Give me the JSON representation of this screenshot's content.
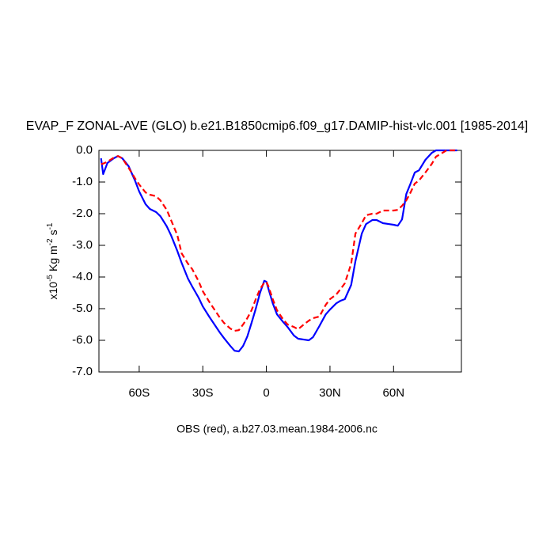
{
  "chart_data": {
    "type": "line",
    "title": "EVAP_F ZONAL-AVE (GLO) b.e21.B1850cmip6.f09_g17.DAMIP-hist-vlc.001 [1985-2014]",
    "xlabel": "OBS (red), a.b27.03.mean.1984-2006.nc",
    "ylabel": {
      "base": [
        "x10",
        "Kg m",
        "s"
      ],
      "sup": [
        "-5",
        "-2",
        "-1"
      ]
    },
    "x": [
      -78,
      -77,
      -75,
      -72,
      -70,
      -68,
      -65,
      -62,
      -60,
      -57,
      -55,
      -52,
      -50,
      -47,
      -45,
      -42,
      -40,
      -37,
      -35,
      -32,
      -30,
      -27,
      -25,
      -22,
      -20,
      -17,
      -15,
      -13,
      -11,
      -9,
      -7,
      -5,
      -3,
      -1,
      0,
      1,
      3,
      5,
      8,
      10,
      13,
      15,
      18,
      20,
      22,
      25,
      28,
      30,
      33,
      35,
      37,
      40,
      42,
      45,
      47,
      50,
      52,
      55,
      58,
      60,
      62,
      64,
      66,
      68,
      70,
      72,
      75,
      78,
      80,
      85,
      90
    ],
    "series": [
      {
        "color": "#0000ff",
        "dash": false,
        "values": [
          -0.25,
          -0.75,
          -0.4,
          -0.25,
          -0.18,
          -0.25,
          -0.5,
          -0.95,
          -1.3,
          -1.7,
          -1.85,
          -1.95,
          -2.08,
          -2.4,
          -2.68,
          -3.18,
          -3.55,
          -4.05,
          -4.3,
          -4.65,
          -4.93,
          -5.25,
          -5.45,
          -5.75,
          -5.93,
          -6.18,
          -6.33,
          -6.35,
          -6.18,
          -5.88,
          -5.45,
          -5.0,
          -4.5,
          -4.12,
          -4.15,
          -4.38,
          -4.83,
          -5.18,
          -5.43,
          -5.58,
          -5.85,
          -5.95,
          -5.98,
          -6.0,
          -5.9,
          -5.55,
          -5.18,
          -5.03,
          -4.83,
          -4.75,
          -4.7,
          -4.25,
          -3.5,
          -2.63,
          -2.33,
          -2.2,
          -2.2,
          -2.3,
          -2.33,
          -2.35,
          -2.38,
          -2.18,
          -1.38,
          -1.05,
          -0.7,
          -0.63,
          -0.3,
          -0.08,
          0,
          0,
          0
        ]
      },
      {
        "color": "#ff0000",
        "dash": true,
        "values": [
          -0.43,
          -0.42,
          -0.36,
          -0.23,
          -0.18,
          -0.25,
          -0.55,
          -0.88,
          -1.08,
          -1.33,
          -1.4,
          -1.45,
          -1.58,
          -1.88,
          -2.2,
          -2.68,
          -3.25,
          -3.58,
          -3.75,
          -4.13,
          -4.45,
          -4.78,
          -4.98,
          -5.28,
          -5.45,
          -5.63,
          -5.7,
          -5.68,
          -5.5,
          -5.3,
          -5.05,
          -4.7,
          -4.38,
          -4.18,
          -4.15,
          -4.3,
          -4.7,
          -5.05,
          -5.35,
          -5.5,
          -5.58,
          -5.65,
          -5.48,
          -5.38,
          -5.3,
          -5.25,
          -4.88,
          -4.7,
          -4.55,
          -4.38,
          -4.2,
          -3.58,
          -2.63,
          -2.3,
          -2.05,
          -2.0,
          -2.0,
          -1.9,
          -1.9,
          -1.9,
          -1.88,
          -1.75,
          -1.58,
          -1.33,
          -1.05,
          -0.95,
          -0.7,
          -0.43,
          -0.2,
          0,
          0
        ]
      }
    ],
    "xlim": [
      -79,
      92
    ],
    "xticks": [
      {
        "value": -60,
        "label": "60S"
      },
      {
        "value": -30,
        "label": "30S"
      },
      {
        "value": 0,
        "label": "0"
      },
      {
        "value": 30,
        "label": "30N"
      },
      {
        "value": 60,
        "label": "60N"
      }
    ],
    "ylim": [
      -7,
      0
    ],
    "yticks": [
      {
        "value": 0,
        "label": "0.0"
      },
      {
        "value": -1,
        "label": "-1.0"
      },
      {
        "value": -2,
        "label": "-2.0"
      },
      {
        "value": -3,
        "label": "-3.0"
      },
      {
        "value": -4,
        "label": "-4.0"
      },
      {
        "value": -5,
        "label": "-5.0"
      },
      {
        "value": -6,
        "label": "-6.0"
      },
      {
        "value": -7,
        "label": "-7.0"
      }
    ],
    "grid": false
  }
}
